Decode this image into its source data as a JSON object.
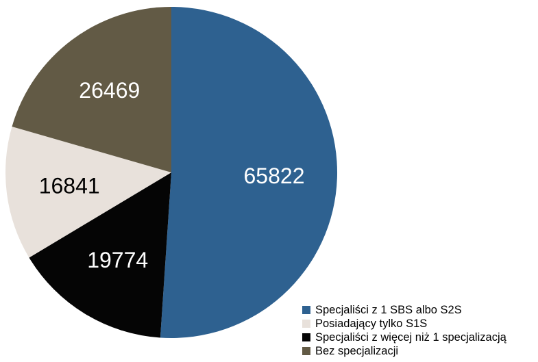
{
  "chart_data": {
    "type": "pie",
    "title": "",
    "categories": [
      "Specjaliści z 1 SBS albo S2S",
      "Posiadający tylko S1S",
      "Specjaliści z więcej niż 1 specjalizacją",
      "Bez specjalizacji"
    ],
    "values": [
      65822,
      16841,
      19774,
      26469
    ],
    "slice_order": [
      "Specjaliści z 1 SBS albo S2S",
      "Specjaliści z więcej niż 1 specjalizacją",
      "Posiadający tylko S1S",
      "Bez specjalizacji"
    ],
    "colors": {
      "Specjaliści z 1 SBS albo S2S": "#2e6190",
      "Posiadający tylko S1S": "#e8e1db",
      "Specjaliści z więcej niż 1 specjalizacją": "#050505",
      "Bez specjalizacji": "#625a45"
    },
    "label_colors": {
      "Specjaliści z 1 SBS albo S2S": "#ffffff",
      "Posiadający tylko S1S": "#000000",
      "Specjaliści z więcej niż 1 specjalizacją": "#ffffff",
      "Bez specjalizacji": "#ffffff"
    },
    "start": "top",
    "direction": "clockwise",
    "legend_position": "bottom-right"
  }
}
